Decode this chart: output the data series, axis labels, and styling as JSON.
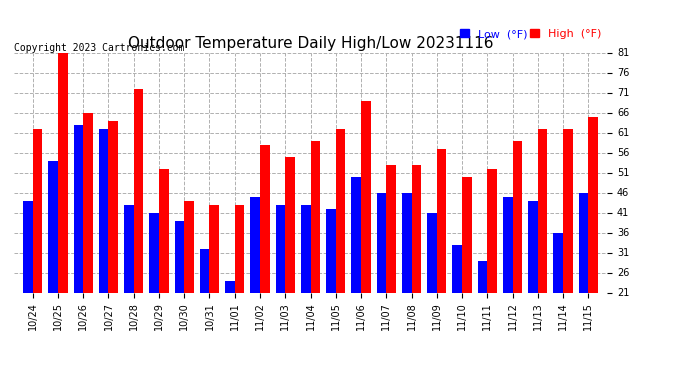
{
  "title": "Outdoor Temperature Daily High/Low 20231116",
  "copyright": "Copyright 2023 Cartronics.com",
  "ylim": [
    21.0,
    81.0
  ],
  "yticks": [
    21.0,
    26.0,
    31.0,
    36.0,
    41.0,
    46.0,
    51.0,
    56.0,
    61.0,
    66.0,
    71.0,
    76.0,
    81.0
  ],
  "categories": [
    "10/24",
    "10/25",
    "10/26",
    "10/27",
    "10/28",
    "10/29",
    "10/30",
    "10/31",
    "11/01",
    "11/02",
    "11/03",
    "11/04",
    "11/05",
    "11/06",
    "11/07",
    "11/08",
    "11/09",
    "11/10",
    "11/11",
    "11/12",
    "11/13",
    "11/14",
    "11/15"
  ],
  "highs": [
    62,
    81,
    66,
    64,
    72,
    52,
    44,
    43,
    43,
    58,
    55,
    59,
    62,
    69,
    53,
    53,
    57,
    50,
    52,
    59,
    62,
    62,
    65
  ],
  "lows": [
    44,
    54,
    63,
    62,
    43,
    41,
    39,
    32,
    24,
    45,
    43,
    43,
    42,
    50,
    46,
    46,
    41,
    33,
    29,
    45,
    44,
    36,
    46
  ],
  "high_color": "#ff0000",
  "low_color": "#0000ff",
  "background_color": "#ffffff",
  "grid_color": "#b0b0b0",
  "title_fontsize": 11,
  "tick_fontsize": 7,
  "copyright_fontsize": 7,
  "legend_low_label": "Low  (°F)",
  "legend_high_label": "High  (°F)",
  "bar_width": 0.38,
  "ybaseline": 21.0
}
